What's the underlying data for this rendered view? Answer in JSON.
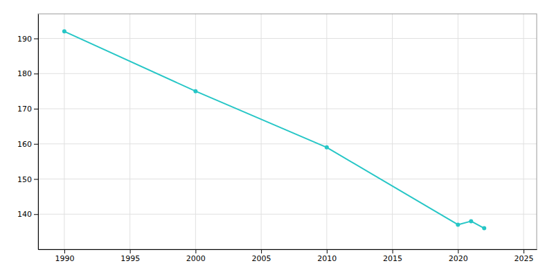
{
  "chart_data": {
    "type": "line",
    "x": [
      1990,
      2000,
      2010,
      2020,
      2021,
      2022
    ],
    "values": [
      192,
      175,
      159,
      137,
      138,
      136
    ],
    "color": "#26c6c6",
    "marker": "circle",
    "xlim": [
      1988,
      2026
    ],
    "ylim": [
      130,
      197
    ],
    "xticks": [
      1990,
      1995,
      2000,
      2005,
      2010,
      2015,
      2020,
      2025
    ],
    "yticks": [
      140,
      150,
      160,
      170,
      180,
      190
    ],
    "grid": true
  }
}
